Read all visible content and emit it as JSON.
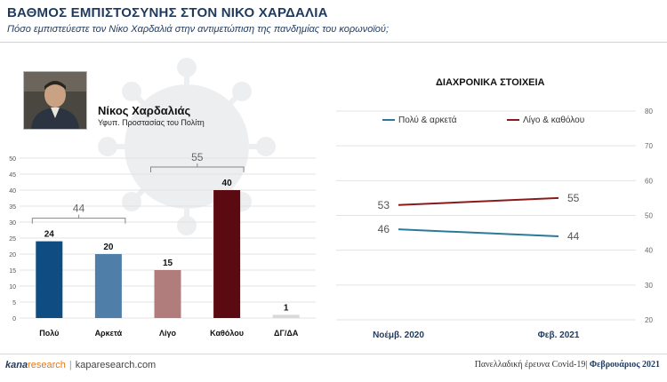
{
  "header": {
    "title": "ΒΑΘΜΟΣ ΕΜΠΙΣΤΟΣΥΝΗΣ ΣΤΟΝ ΝΙΚΟ ΧΑΡΔΑΛΙΑ",
    "subtitle": "Πόσο εμπιστεύεστε τον Νίκο Χαρδαλιά στην αντιμετώπιση της πανδημίας του κορωνοϊού;"
  },
  "person": {
    "name": "Νίκος Χαρδαλιάς",
    "role": "Υφυπ. Προστασίας του Πολίτη"
  },
  "footer": {
    "brand_kana": "kana",
    "brand_research": "research",
    "site": "kaparesearch.com",
    "note": "Πανελλαδική έρευνα Covid-19|",
    "month": "Φεβρουάριος 2021"
  },
  "chart_data": [
    {
      "type": "bar",
      "categories": [
        "Πολύ",
        "Αρκετά",
        "Λίγο",
        "Καθόλου",
        "ΔΓ/ΔΑ"
      ],
      "values": [
        24,
        20,
        15,
        40,
        1
      ],
      "colors": [
        "#0f4c81",
        "#4f7fa8",
        "#b07c7c",
        "#5c0a12",
        "#d9d9d9"
      ],
      "ylim": [
        0,
        50
      ],
      "yticks": [
        0,
        5,
        10,
        15,
        20,
        25,
        30,
        35,
        40,
        45,
        50
      ],
      "groups": [
        {
          "label": "44",
          "from": 0,
          "to": 1
        },
        {
          "label": "55",
          "from": 2,
          "to": 3
        }
      ],
      "grid": true
    },
    {
      "type": "line",
      "title": "ΔΙΑΧΡΟΝΙΚΑ ΣΤΟΙΧΕΙΑ",
      "x": [
        "Νοέμβ. 2020",
        "Φεβ. 2021"
      ],
      "series": [
        {
          "name": "Πολύ & αρκετά",
          "values": [
            46,
            44
          ],
          "color": "#2a7a9a"
        },
        {
          "name": "Λίγο & καθόλου",
          "values": [
            53,
            55
          ],
          "color": "#8b1a1a"
        }
      ],
      "ylim": [
        20,
        80
      ],
      "yticks": [
        20,
        30,
        40,
        50,
        60,
        70,
        80
      ],
      "legend": "top",
      "grid": true
    }
  ]
}
